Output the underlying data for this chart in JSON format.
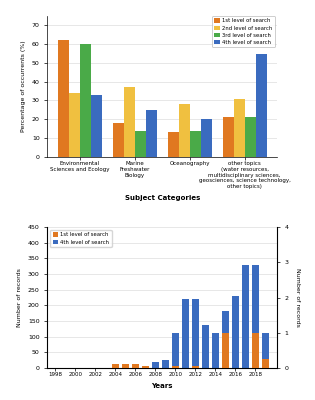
{
  "top": {
    "categories": [
      "Environmental\nSciences and Ecology",
      "Marine\nFreshwater\nBiology",
      "Oceanography",
      "other topics\n(water resources,\nmultidisciplinary sciences,\ngeosciences, science technology,\nother topics)"
    ],
    "series": {
      "1st level of search": [
        62,
        18,
        13,
        21
      ],
      "2nd level of search": [
        34,
        37,
        28,
        31
      ],
      "3rd level of search": [
        60,
        14,
        14,
        21
      ],
      "4th level of search": [
        33,
        25,
        20,
        55
      ]
    },
    "colors": {
      "1st level of search": "#e07820",
      "2nd level of search": "#f0c040",
      "3rd level of search": "#4aaa48",
      "4th level of search": "#3a6bbf"
    },
    "ylabel": "Percentage of occurrents (%)",
    "xlabel": "Subject Categories",
    "ylim": [
      0,
      75
    ],
    "yticks": [
      0,
      10,
      20,
      30,
      40,
      50,
      60,
      70
    ]
  },
  "bottom": {
    "years": [
      1998,
      1999,
      2000,
      2001,
      2002,
      2003,
      2004,
      2005,
      2006,
      2007,
      2008,
      2009,
      2010,
      2011,
      2012,
      2013,
      2014,
      2015,
      2016,
      2017,
      2018,
      2019
    ],
    "level1": [
      0,
      0,
      0,
      0,
      0,
      0,
      0.1,
      0.1,
      0.1,
      0.05,
      0,
      0,
      0.05,
      0,
      0.05,
      0,
      0,
      1,
      0,
      0,
      1,
      0.25
    ],
    "level4": [
      0,
      0,
      0,
      0,
      0,
      0,
      0,
      0,
      2,
      5,
      20,
      25,
      113,
      222,
      222,
      137,
      112,
      182,
      230,
      330,
      330,
      112
    ],
    "colors": {
      "1st level of search": "#e07820",
      "4th level of search": "#3a6bbf"
    },
    "ylabel_left": "Number of records",
    "ylabel_right": "Number of records",
    "xlabel": "Years",
    "ylim_left": [
      0,
      450
    ],
    "ylim_right": [
      0,
      4
    ],
    "yticks_left": [
      0,
      50,
      100,
      150,
      200,
      250,
      300,
      350,
      400,
      450
    ],
    "yticks_right": [
      0,
      1,
      2,
      3,
      4
    ],
    "xtick_years": [
      1998,
      2000,
      2002,
      2004,
      2006,
      2008,
      2010,
      2012,
      2014,
      2016,
      2018
    ]
  }
}
